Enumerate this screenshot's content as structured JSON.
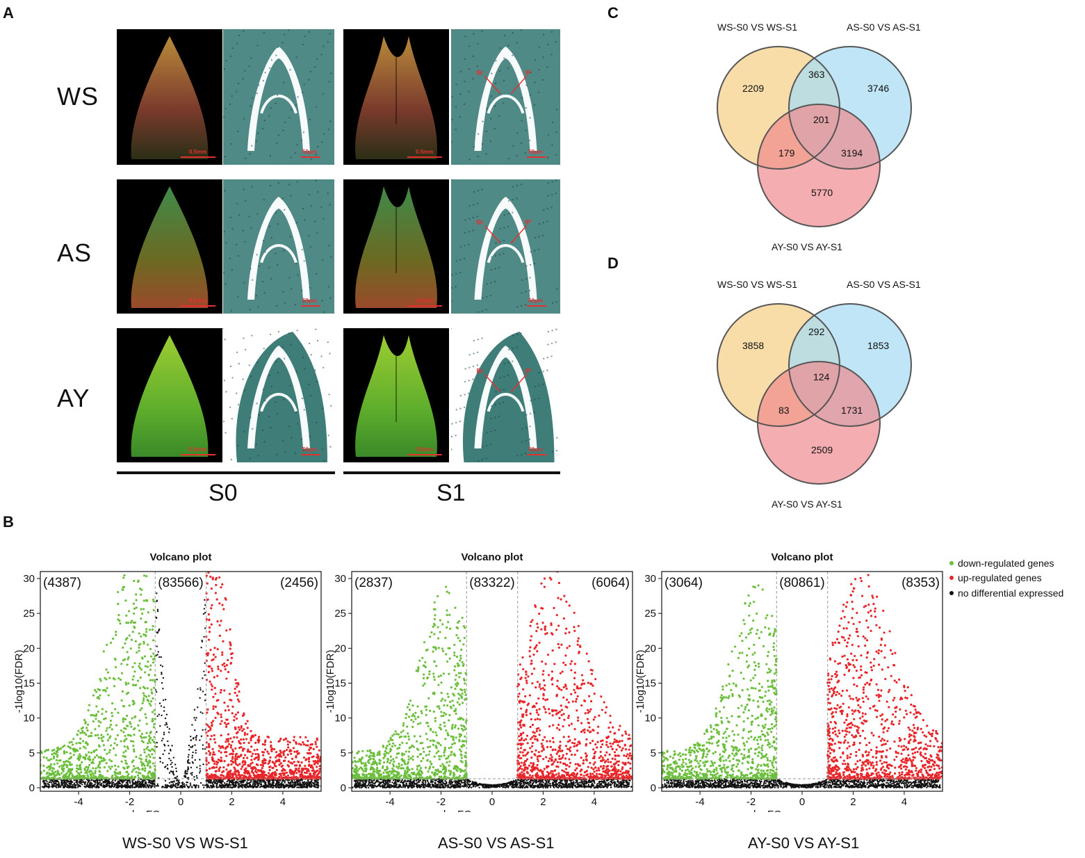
{
  "panels": {
    "A": "A",
    "B": "B",
    "C": "C",
    "D": "D"
  },
  "panelA": {
    "rows": [
      "WS",
      "AS",
      "AY"
    ],
    "stages": [
      "S0",
      "S1"
    ],
    "scale_photo": "0.5mm",
    "scale_section": "50μm",
    "arrow_label_left": "Br",
    "arrow_label_right": "IP"
  },
  "venn": [
    {
      "id": "C",
      "sets": [
        "WS-S0 VS WS-S1",
        "AS-S0 VS AS-S1",
        "AY-S0 VS AY-S1"
      ],
      "values": {
        "a_only": "2209",
        "ab": "363",
        "b_only": "3746",
        "abc": "201",
        "ac": "179",
        "bc": "3194",
        "c_only": "5770"
      }
    },
    {
      "id": "D",
      "sets": [
        "WS-S0 VS WS-S1",
        "AS-S0 VS AS-S1",
        "AY-S0 VS AY-S1"
      ],
      "values": {
        "a_only": "3858",
        "ab": "292",
        "b_only": "1853",
        "abc": "124",
        "ac": "83",
        "bc": "1731",
        "c_only": "2509"
      }
    }
  ],
  "legend": {
    "down": "down-regulated genes",
    "up": "up-regulated genes",
    "none": "no differential expressed"
  },
  "colors": {
    "down": "#6cbf3c",
    "up": "#e8262a",
    "none": "#111111",
    "venn_a": "#f7d79a",
    "venn_b": "#a9dcf3",
    "venn_c": "#f08a8e"
  },
  "chart_data": [
    {
      "type": "scatter",
      "title": "Volcano plot",
      "xlabel": "logFC",
      "ylabel": "-1log10(FDR)",
      "xlim": [
        -5.5,
        5.5
      ],
      "ylim": [
        -0.5,
        31
      ],
      "xticks": [
        "-4",
        "-2",
        "0",
        "2",
        "4"
      ],
      "yticks": [
        "0",
        "5",
        "10",
        "15",
        "20",
        "25",
        "30"
      ],
      "fc_threshold": 1,
      "fdr_threshold": 1.3,
      "counts": {
        "down": "(4387)",
        "none": "(83566)",
        "up": "(2456)"
      },
      "caption": "WS-S0 VS WS-S1",
      "shape": {
        "down_spread": 0.9,
        "up_spread": 0.6,
        "center_height": 30
      }
    },
    {
      "type": "scatter",
      "title": "Volcano plot",
      "xlabel": "logFC",
      "ylabel": "-1log10(FDR)",
      "xlim": [
        -5.5,
        5.5
      ],
      "ylim": [
        -0.5,
        31
      ],
      "xticks": [
        "-4",
        "-2",
        "0",
        "2",
        "4"
      ],
      "yticks": [
        "0",
        "5",
        "10",
        "15",
        "20",
        "25",
        "30"
      ],
      "fc_threshold": 1,
      "fdr_threshold": 1.3,
      "counts": {
        "down": "(2837)",
        "none": "(83322)",
        "up": "(6064)"
      },
      "caption": "AS-S0 VS AS-S1",
      "shape": {
        "down_spread": 0.8,
        "up_spread": 1.0,
        "center_height": 7
      }
    },
    {
      "type": "scatter",
      "title": "Volcano plot",
      "xlabel": "logFC",
      "ylabel": "-1log10(FDR)",
      "xlim": [
        -5.5,
        5.5
      ],
      "ylim": [
        -0.5,
        31
      ],
      "xticks": [
        "-4",
        "-2",
        "0",
        "2",
        "4"
      ],
      "yticks": [
        "0",
        "5",
        "10",
        "15",
        "20",
        "25",
        "30"
      ],
      "fc_threshold": 1,
      "fdr_threshold": 1.3,
      "counts": {
        "down": "(3064)",
        "none": "(80861)",
        "up": "(8353)"
      },
      "caption": "AY-S0 VS AY-S1",
      "shape": {
        "down_spread": 0.8,
        "up_spread": 1.1,
        "center_height": 7
      }
    }
  ]
}
